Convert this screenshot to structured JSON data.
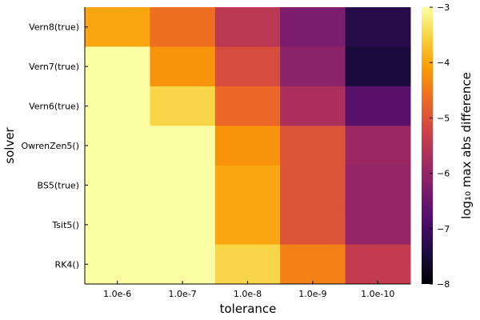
{
  "chart_data": {
    "type": "heatmap",
    "title": "",
    "xlabel": "tolerance",
    "ylabel": "solver",
    "x_categories": [
      "1.0e-6",
      "1.0e-7",
      "1.0e-8",
      "1.0e-9",
      "1.0e-10"
    ],
    "y_categories": [
      "Vern8(true)",
      "Vern7(true)",
      "Vern6(true)",
      "OwrenZen5()",
      "BS5(true)",
      "Tsit5()",
      "RK4()"
    ],
    "values": [
      [
        -4.0,
        -4.6,
        -5.5,
        -6.3,
        -7.3
      ],
      [
        -3.0,
        -4.2,
        -5.1,
        -6.1,
        -7.5
      ],
      [
        -3.0,
        -3.5,
        -4.7,
        -5.7,
        -6.7
      ],
      [
        -3.0,
        -3.0,
        -4.2,
        -5.0,
        -5.9
      ],
      [
        -3.0,
        -3.0,
        -4.0,
        -5.0,
        -6.0
      ],
      [
        -3.0,
        -3.0,
        -4.0,
        -5.0,
        -6.0
      ],
      [
        -3.0,
        -3.0,
        -3.5,
        -4.4,
        -5.4
      ]
    ],
    "colorbar": {
      "label": "log₁₀ max abs difference",
      "range": [
        -8,
        -3
      ],
      "ticks": [
        "−8",
        "−7",
        "−6",
        "−5",
        "−4",
        "−3"
      ],
      "tick_values": [
        -8,
        -7,
        -6,
        -5,
        -4,
        -3
      ],
      "colormap": "inferno",
      "position": "right"
    },
    "grid": false,
    "colors": [
      "#000004",
      "#1b0c41",
      "#4a0c6b",
      "#781c6d",
      "#a52c60",
      "#cf4446",
      "#ed6925",
      "#fb9b06",
      "#f7d13d",
      "#fcffa4"
    ]
  }
}
